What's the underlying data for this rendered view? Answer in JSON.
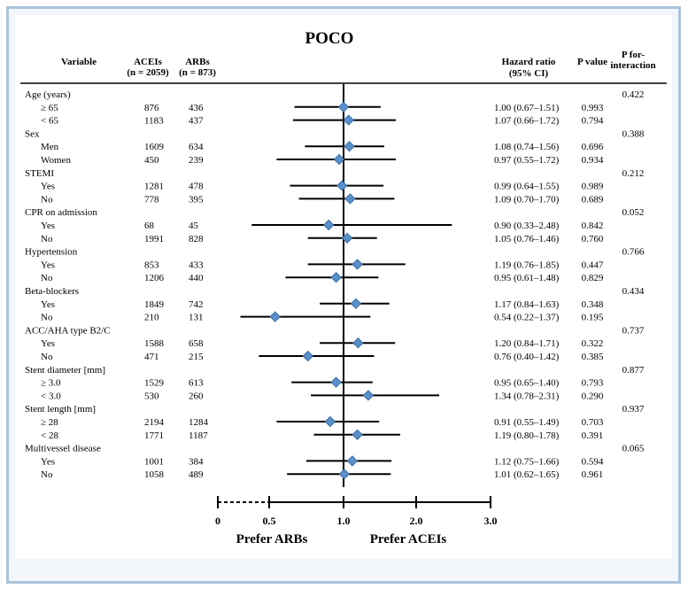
{
  "chart_data": {
    "type": "forest",
    "title": "POCO",
    "columns": {
      "variable": "Variable",
      "aceis_label": "ACEIs",
      "aceis_n": "(n = 2059)",
      "arbs_label": "ARBs",
      "arbs_n": "(n = 873)",
      "hr_label": "Hazard ratio",
      "hr_ci": "(95% CI)",
      "p_label": "P value",
      "pint_label": "P for-",
      "pint_label2": "interaction"
    },
    "xaxis": {
      "ticks": [
        0,
        0.5,
        1.0,
        2.0,
        3.0
      ],
      "tick_labels": [
        "0",
        "0.5",
        "1.0",
        "2.0",
        "3.0"
      ],
      "break_between": [
        0,
        0.5
      ],
      "reference_line": 1.0
    },
    "left_label": "Prefer ARBs",
    "right_label": "Prefer ACEIs",
    "rows": [
      {
        "type": "group",
        "label": "Age (years)",
        "p_int": "0.422"
      },
      {
        "type": "item",
        "label": "≥ 65",
        "aceis": "876",
        "arbs": "436",
        "hr": 1.0,
        "lo": 0.67,
        "hi": 1.51,
        "hr_text": "1.00 (0.67–1.51)",
        "p": "0.993"
      },
      {
        "type": "item",
        "label": "< 65",
        "aceis": "1183",
        "arbs": "437",
        "hr": 1.07,
        "lo": 0.66,
        "hi": 1.72,
        "hr_text": "1.07 (0.66–1.72)",
        "p": "0.794"
      },
      {
        "type": "group",
        "label": "Sex",
        "p_int": "0.388"
      },
      {
        "type": "item",
        "label": "Men",
        "aceis": "1609",
        "arbs": "634",
        "hr": 1.08,
        "lo": 0.74,
        "hi": 1.56,
        "hr_text": "1.08 (0.74–1.56)",
        "p": "0.696"
      },
      {
        "type": "item",
        "label": "Women",
        "aceis": "450",
        "arbs": "239",
        "hr": 0.97,
        "lo": 0.55,
        "hi": 1.72,
        "hr_text": "0.97 (0.55–1.72)",
        "p": "0.934"
      },
      {
        "type": "group",
        "label": "STEMI",
        "p_int": "0.212"
      },
      {
        "type": "item",
        "label": "Yes",
        "aceis": "1281",
        "arbs": "478",
        "hr": 0.99,
        "lo": 0.64,
        "hi": 1.55,
        "hr_text": "0.99 (0.64–1.55)",
        "p": "0.989"
      },
      {
        "type": "item",
        "label": "No",
        "aceis": "778",
        "arbs": "395",
        "hr": 1.09,
        "lo": 0.7,
        "hi": 1.7,
        "hr_text": "1.09 (0.70–1.70)",
        "p": "0.689"
      },
      {
        "type": "group",
        "label": "CPR on admission",
        "p_int": "0.052"
      },
      {
        "type": "item",
        "label": "Yes",
        "aceis": "68",
        "arbs": "45",
        "hr": 0.9,
        "lo": 0.33,
        "hi": 2.48,
        "hr_text": "0.90 (0.33–2.48)",
        "p": "0.842"
      },
      {
        "type": "item",
        "label": "No",
        "aceis": "1991",
        "arbs": "828",
        "hr": 1.05,
        "lo": 0.76,
        "hi": 1.46,
        "hr_text": "1.05 (0.76–1.46)",
        "p": "0.760"
      },
      {
        "type": "group",
        "label": "Hypertension",
        "p_int": "0.766"
      },
      {
        "type": "item",
        "label": "Yes",
        "aceis": "853",
        "arbs": "433",
        "hr": 1.19,
        "lo": 0.76,
        "hi": 1.85,
        "hr_text": "1.19 (0.76–1.85)",
        "p": "0.447"
      },
      {
        "type": "item",
        "label": "No",
        "aceis": "1206",
        "arbs": "440",
        "hr": 0.95,
        "lo": 0.61,
        "hi": 1.48,
        "hr_text": "0.95 (0.61–1.48)",
        "p": "0.829"
      },
      {
        "type": "group",
        "label": "Beta-blockers",
        "p_int": "0.434"
      },
      {
        "type": "item",
        "label": "Yes",
        "aceis": "1849",
        "arbs": "742",
        "hr": 1.17,
        "lo": 0.84,
        "hi": 1.63,
        "hr_text": "1.17 (0.84–1.63)",
        "p": "0.348"
      },
      {
        "type": "item",
        "label": "No",
        "aceis": "210",
        "arbs": "131",
        "hr": 0.54,
        "lo": 0.22,
        "hi": 1.37,
        "hr_text": "0.54 (0.22–1.37)",
        "p": "0.195"
      },
      {
        "type": "group",
        "label": "ACC/AHA type B2/C",
        "p_int": "0.737"
      },
      {
        "type": "item",
        "label": "Yes",
        "aceis": "1588",
        "arbs": "658",
        "hr": 1.2,
        "lo": 0.84,
        "hi": 1.71,
        "hr_text": "1.20 (0.84–1.71)",
        "p": "0.322"
      },
      {
        "type": "item",
        "label": "No",
        "aceis": "471",
        "arbs": "215",
        "hr": 0.76,
        "lo": 0.4,
        "hi": 1.42,
        "hr_text": "0.76 (0.40–1.42)",
        "p": "0.385"
      },
      {
        "type": "group",
        "label": "Stent diameter [mm]",
        "p_int": "0.877"
      },
      {
        "type": "item",
        "label": "≥ 3.0",
        "aceis": "1529",
        "arbs": "613",
        "hr": 0.95,
        "lo": 0.65,
        "hi": 1.4,
        "hr_text": "0.95 (0.65–1.40)",
        "p": "0.793"
      },
      {
        "type": "item",
        "label": "< 3.0",
        "aceis": "530",
        "arbs": "260",
        "hr": 1.34,
        "lo": 0.78,
        "hi": 2.31,
        "hr_text": "1.34 (0.78–2.31)",
        "p": "0.290"
      },
      {
        "type": "group",
        "label": "Stent length [mm]",
        "p_int": "0.937"
      },
      {
        "type": "item",
        "label": "≥ 28",
        "aceis": "2194",
        "arbs": "1284",
        "hr": 0.91,
        "lo": 0.55,
        "hi": 1.49,
        "hr_text": "0.91 (0.55–1.49)",
        "p": "0.703"
      },
      {
        "type": "item",
        "label": "< 28",
        "aceis": "1771",
        "arbs": "1187",
        "hr": 1.19,
        "lo": 0.8,
        "hi": 1.78,
        "hr_text": "1.19 (0.80–1.78)",
        "p": "0.391"
      },
      {
        "type": "group",
        "label": "Multivessel disease",
        "p_int": "0.065"
      },
      {
        "type": "item",
        "label": "Yes",
        "aceis": "1001",
        "arbs": "384",
        "hr": 1.12,
        "lo": 0.75,
        "hi": 1.66,
        "hr_text": "1.12 (0.75–1.66)",
        "p": "0.594"
      },
      {
        "type": "item",
        "label": "No",
        "aceis": "1058",
        "arbs": "489",
        "hr": 1.01,
        "lo": 0.62,
        "hi": 1.65,
        "hr_text": "1.01 (0.62–1.65)",
        "p": "0.961"
      }
    ]
  },
  "colors": {
    "marker_fill": "#5b8fc9",
    "marker_stroke": "#3a6ea5",
    "line": "#000000",
    "frame_border": "#a9c3dc"
  }
}
